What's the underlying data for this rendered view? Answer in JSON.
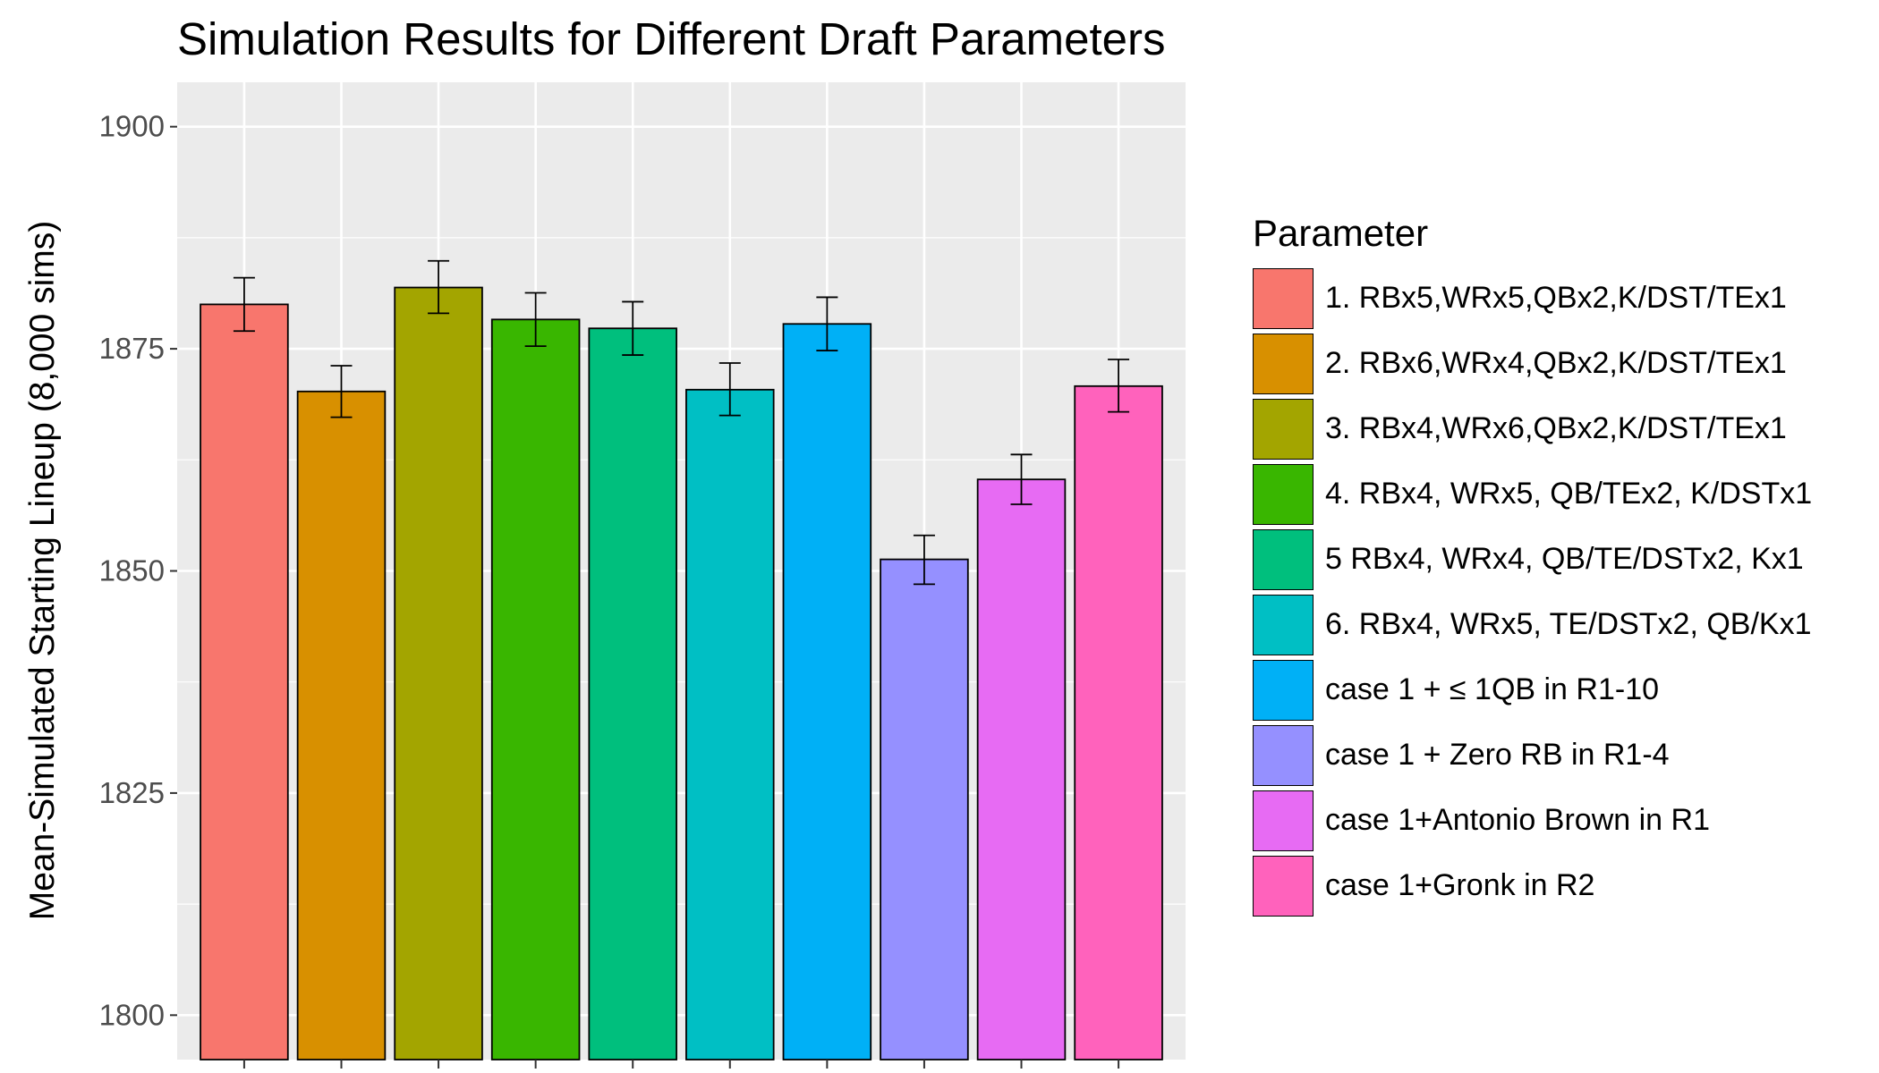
{
  "chart_data": {
    "type": "bar",
    "title": "Simulation Results for Different Draft Parameters",
    "xlabel": "",
    "ylabel": "Mean-Simulated Starting Lineup (8,000 sims)",
    "ylim": [
      1795,
      1905
    ],
    "yticks": [
      1800,
      1825,
      1850,
      1875,
      1900
    ],
    "grid": true,
    "legend_position": "right",
    "legend_title": "Parameter",
    "categories": [
      "1. RBx5,WRx5,QBx2,K/DST/TEx1",
      "2. RBx6,WRx4,QBx2,K/DST/TEx1",
      "3. RBx4,WRx6,QBx2,K/DST/TEx1",
      "4. RBx4, WRx5, QB/TEx2, K/DSTx1",
      "5 RBx4, WRx4, QB/TE/DSTx2, Kx1",
      "6. RBx4, WRx5, TE/DSTx2, QB/Kx1",
      "case 1 + ≤ 1QB in R1-10",
      "case 1 + Zero RB in R1-4",
      "case 1+Antonio Brown in R1",
      "case 1+Gronk in R2"
    ],
    "values": [
      1880.0,
      1870.2,
      1881.9,
      1878.3,
      1877.3,
      1870.4,
      1877.8,
      1851.3,
      1860.3,
      1870.8
    ],
    "error_low": [
      1877.0,
      1867.3,
      1879.0,
      1875.3,
      1874.3,
      1867.5,
      1874.8,
      1848.5,
      1857.5,
      1867.9
    ],
    "error_high": [
      1883.0,
      1873.1,
      1884.9,
      1881.3,
      1880.3,
      1873.4,
      1880.8,
      1854.0,
      1863.1,
      1873.8
    ],
    "colors": [
      "#F8766D",
      "#D89000",
      "#A3A500",
      "#39B600",
      "#00BF7D",
      "#00BFC4",
      "#00B0F6",
      "#9590FF",
      "#E76BF3",
      "#FF62BC"
    ]
  }
}
